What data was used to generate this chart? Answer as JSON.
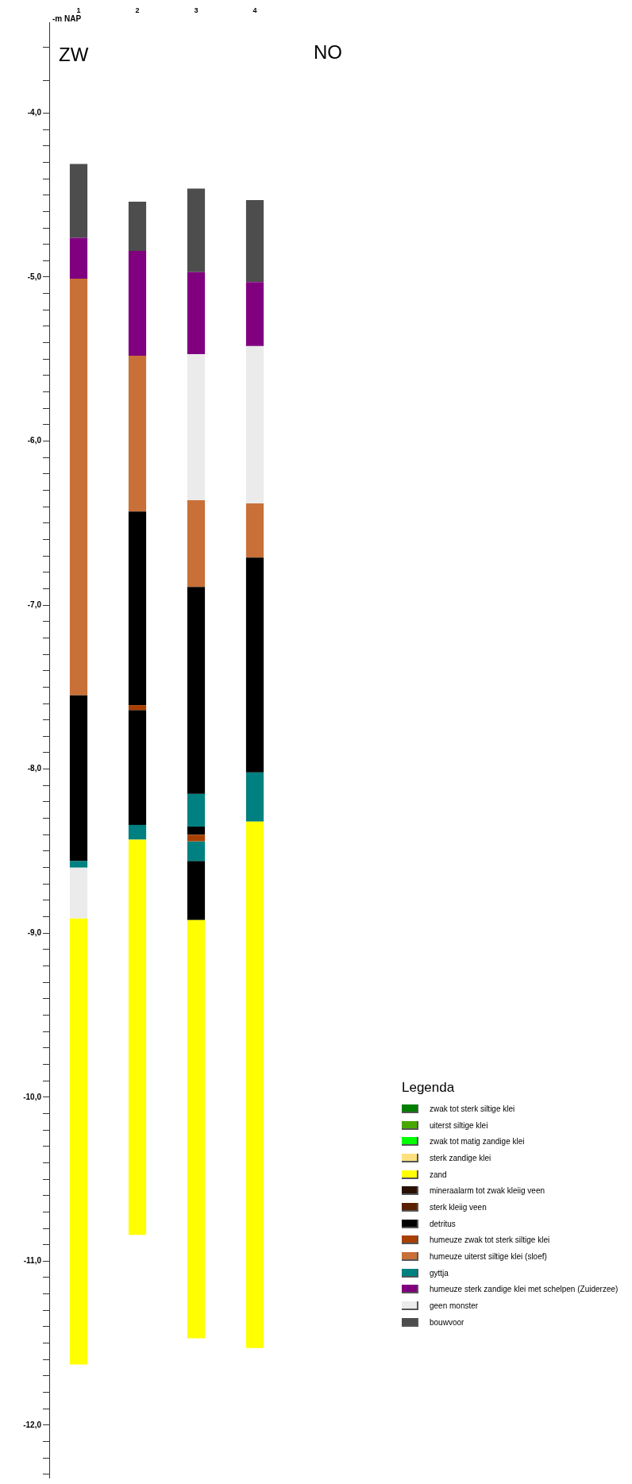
{
  "chart_data": {
    "type": "bar",
    "orientation": "vertical",
    "ylabel": "-m NAP",
    "legend_title": "Legenda",
    "legend": "bottom right",
    "annotations": [
      "ZW",
      "NO"
    ],
    "categories": [
      "1",
      "2",
      "3",
      "4"
    ],
    "ylim": [
      -12.32,
      -3.45
    ],
    "yticks": [
      {
        "value": -3.6,
        "label": null
      },
      {
        "value": -3.8,
        "label": null
      },
      {
        "value": -4,
        "label": "-4,0"
      },
      {
        "value": -4.1,
        "label": null
      },
      {
        "value": -4.2,
        "label": null
      },
      {
        "value": -4.3,
        "label": null
      },
      {
        "value": -4.4,
        "label": null
      },
      {
        "value": -4.5,
        "label": null
      },
      {
        "value": -4.6,
        "label": null
      },
      {
        "value": -4.7,
        "label": null
      },
      {
        "value": -4.8,
        "label": null
      },
      {
        "value": -4.9,
        "label": null
      },
      {
        "value": -5,
        "label": "-5,0"
      },
      {
        "value": -5.1,
        "label": null
      },
      {
        "value": -5.2,
        "label": null
      },
      {
        "value": -5.3,
        "label": null
      },
      {
        "value": -5.4,
        "label": null
      },
      {
        "value": -5.5,
        "label": null
      },
      {
        "value": -5.6,
        "label": null
      },
      {
        "value": -5.7,
        "label": null
      },
      {
        "value": -5.8,
        "label": null
      },
      {
        "value": -5.9,
        "label": null
      },
      {
        "value": -6,
        "label": "-6,0"
      },
      {
        "value": -6.1,
        "label": null
      },
      {
        "value": -6.2,
        "label": null
      },
      {
        "value": -6.3,
        "label": null
      },
      {
        "value": -6.4,
        "label": null
      },
      {
        "value": -6.5,
        "label": null
      },
      {
        "value": -6.6,
        "label": null
      },
      {
        "value": -6.7,
        "label": null
      },
      {
        "value": -6.8,
        "label": null
      },
      {
        "value": -6.9,
        "label": null
      },
      {
        "value": -7,
        "label": "-7,0"
      },
      {
        "value": -7.1,
        "label": null
      },
      {
        "value": -7.2,
        "label": null
      },
      {
        "value": -7.3,
        "label": null
      },
      {
        "value": -7.4,
        "label": null
      },
      {
        "value": -7.5,
        "label": null
      },
      {
        "value": -7.6,
        "label": null
      },
      {
        "value": -7.7,
        "label": null
      },
      {
        "value": -7.8,
        "label": null
      },
      {
        "value": -7.9,
        "label": null
      },
      {
        "value": -8,
        "label": "-8,0"
      },
      {
        "value": -8.1,
        "label": null
      },
      {
        "value": -8.2,
        "label": null
      },
      {
        "value": -8.3,
        "label": null
      },
      {
        "value": -8.4,
        "label": null
      },
      {
        "value": -8.5,
        "label": null
      },
      {
        "value": -8.6,
        "label": null
      },
      {
        "value": -8.7,
        "label": null
      },
      {
        "value": -8.8,
        "label": null
      },
      {
        "value": -8.9,
        "label": null
      },
      {
        "value": -9,
        "label": "-9,0"
      },
      {
        "value": -9.1,
        "label": null
      },
      {
        "value": -9.2,
        "label": null
      },
      {
        "value": -9.3,
        "label": null
      },
      {
        "value": -9.4,
        "label": null
      },
      {
        "value": -9.5,
        "label": null
      },
      {
        "value": -9.6,
        "label": null
      },
      {
        "value": -9.7,
        "label": null
      },
      {
        "value": -9.8,
        "label": null
      },
      {
        "value": -9.9,
        "label": null
      },
      {
        "value": -10,
        "label": "-10,0"
      },
      {
        "value": -10.1,
        "label": null
      },
      {
        "value": -10.2,
        "label": null
      },
      {
        "value": -10.3,
        "label": null
      },
      {
        "value": -10.4,
        "label": null
      },
      {
        "value": -10.5,
        "label": null
      },
      {
        "value": -10.6,
        "label": null
      },
      {
        "value": -10.7,
        "label": null
      },
      {
        "value": -10.8,
        "label": null
      },
      {
        "value": -10.9,
        "label": null
      },
      {
        "value": -11,
        "label": "-11,0"
      },
      {
        "value": -11.1,
        "label": null
      },
      {
        "value": -11.2,
        "label": null
      },
      {
        "value": -11.3,
        "label": null
      },
      {
        "value": -11.4,
        "label": null
      },
      {
        "value": -11.5,
        "label": null
      },
      {
        "value": -11.6,
        "label": null
      },
      {
        "value": -11.7,
        "label": null
      },
      {
        "value": -11.8,
        "label": null
      },
      {
        "value": -11.9,
        "label": null
      },
      {
        "value": -12,
        "label": "-12,0"
      },
      {
        "value": -12.1,
        "label": null
      },
      {
        "value": -12.2,
        "label": null
      },
      {
        "value": -12.3,
        "label": null
      }
    ],
    "series": [
      {
        "name": "zwak tot sterk siltige klei",
        "color": "#007f00",
        "base": [
          null,
          null,
          null,
          null
        ],
        "values": [
          null,
          null,
          null,
          null
        ]
      },
      {
        "name": "uiterst siltige klei",
        "color": "#48a800",
        "base": [
          null,
          null,
          null,
          null
        ],
        "values": [
          null,
          null,
          null,
          null
        ]
      },
      {
        "name": "zwak tot matig zandige klei",
        "color": "#00ff00",
        "base": [
          null,
          null,
          null,
          null
        ],
        "values": [
          null,
          null,
          null,
          null
        ]
      },
      {
        "name": "sterk zandige klei",
        "color": "#ffe080",
        "base": [
          null,
          null,
          null,
          null
        ],
        "values": [
          null,
          null,
          null,
          null
        ]
      },
      {
        "name": "zand",
        "color": "#ffff00",
        "base": [
          -8.91,
          -8.43,
          -8.92,
          -8.32
        ],
        "values": [
          -2.72,
          -2.41,
          -2.55,
          -3.21
        ]
      },
      {
        "name": "mineraalarm tot zwak kleiig veen",
        "color": "#2a1000",
        "base": [
          null,
          null,
          null,
          null
        ],
        "values": [
          null,
          null,
          null,
          null
        ]
      },
      {
        "name": "sterk kleiig veen",
        "color": "#5a2000",
        "base": [
          null,
          null,
          null,
          null
        ],
        "values": [
          null,
          null,
          null,
          null
        ]
      },
      {
        "name": "detritus",
        "color": "#000000",
        "base": [
          -7.55,
          -6.43,
          -6.89,
          -6.71
        ],
        "values": [
          -1.01,
          -1.18,
          -1.26,
          -1.31
        ]
      },
      {
        "name": "humeuze zwak tot sterk siltige klei",
        "color": "#a84000",
        "base": [
          null,
          -7.61,
          -8.4,
          null
        ],
        "values": [
          null,
          -0.03,
          -0.04,
          null
        ]
      },
      {
        "name": "humeuze uiterst siltige klei (sloef)",
        "color": "#c87038",
        "base": [
          -5.01,
          -5.48,
          -6.36,
          -6.38
        ],
        "values": [
          -2.54,
          -0.95,
          -0.53,
          -0.33
        ]
      },
      {
        "name": "gyttja",
        "color": "#008080",
        "base": [
          -8.56,
          -8.34,
          -8.15,
          -8.02
        ],
        "values": [
          -0.04,
          -0.09,
          -0.2,
          -0.3
        ]
      },
      {
        "name": "humeuze sterk zandige klei met schelpen (Zuiderzee)",
        "color": "#800080",
        "base": [
          -4.76,
          -4.84,
          -4.97,
          -5.03
        ],
        "values": [
          -0.25,
          -0.64,
          -0.5,
          -0.39
        ]
      },
      {
        "name": "geen monster",
        "color": "#ebebeb",
        "base": [
          -8.6,
          null,
          -5.47,
          -5.42
        ],
        "values": [
          -0.31,
          null,
          -0.89,
          -0.96
        ]
      },
      {
        "name": "bouwvoor",
        "color": "#4d4d4d",
        "base": [
          -4.31,
          -4.54,
          -4.46,
          -4.53
        ],
        "values": [
          -0.45,
          -0.3,
          -0.51,
          -0.5
        ]
      },
      {
        "color": "#000000",
        "base": [
          null,
          -7.64,
          -8.35,
          null
        ],
        "values": [
          null,
          -0.7,
          -0.05,
          null
        ]
      },
      {
        "color": "#008080",
        "base": [
          null,
          null,
          -8.44,
          null
        ],
        "values": [
          null,
          null,
          -0.12,
          null
        ]
      },
      {
        "color": "#000000",
        "base": [
          null,
          null,
          -8.56,
          null
        ],
        "values": [
          null,
          null,
          -0.36,
          null
        ]
      }
    ]
  }
}
